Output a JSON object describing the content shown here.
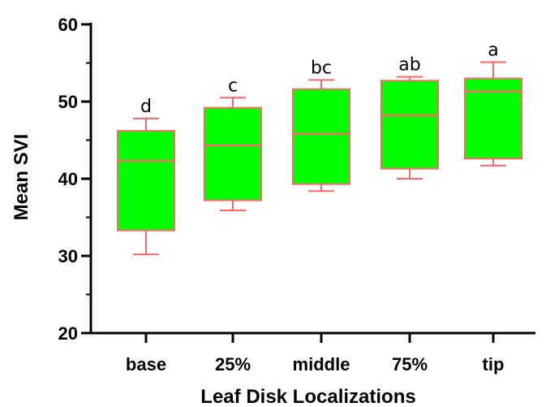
{
  "chart_data": {
    "type": "box",
    "xlabel": "Leaf Disk Localizations",
    "ylabel": "Mean SVI",
    "ylim": [
      20,
      60
    ],
    "yticks": [
      20,
      30,
      40,
      50,
      60
    ],
    "grid": false,
    "colors": {
      "box_fill": "#00ff00",
      "box_stroke": "#ff6666"
    },
    "categories": [
      "base",
      "25%",
      "middle",
      "75%",
      "tip"
    ],
    "boxes": [
      {
        "category": "base",
        "min": 30.2,
        "q1": 33.3,
        "median": 42.3,
        "q3": 46.2,
        "max": 47.8,
        "significance": "d"
      },
      {
        "category": "25%",
        "min": 35.9,
        "q1": 37.2,
        "median": 44.3,
        "q3": 49.2,
        "max": 50.5,
        "significance": "c"
      },
      {
        "category": "middle",
        "min": 38.4,
        "q1": 39.3,
        "median": 45.8,
        "q3": 51.6,
        "max": 52.8,
        "significance": "bc"
      },
      {
        "category": "75%",
        "min": 40.0,
        "q1": 41.3,
        "median": 48.2,
        "q3": 52.7,
        "max": 53.2,
        "significance": "ab"
      },
      {
        "category": "tip",
        "min": 41.7,
        "q1": 42.6,
        "median": 51.3,
        "q3": 53.0,
        "max": 55.1,
        "significance": "a"
      }
    ]
  }
}
